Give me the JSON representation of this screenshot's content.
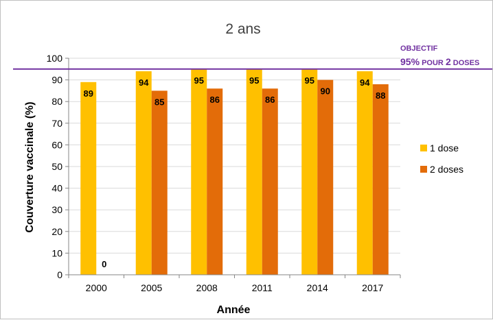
{
  "chart_data": {
    "type": "bar",
    "title": "2 ans",
    "xlabel": "Année",
    "ylabel": "Couverture vaccinale (%)",
    "ylim": [
      0,
      100
    ],
    "yticks": [
      0,
      10,
      20,
      30,
      40,
      50,
      60,
      70,
      80,
      90,
      100
    ],
    "categories": [
      "2000",
      "2005",
      "2008",
      "2011",
      "2014",
      "2017"
    ],
    "series": [
      {
        "name": "1 dose",
        "color": "#ffc000",
        "values": [
          89,
          94,
          95,
          95,
          95,
          94
        ]
      },
      {
        "name": "2 doses",
        "color": "#e36c09",
        "values": [
          0,
          85,
          86,
          86,
          90,
          88
        ]
      }
    ],
    "data_labels": true,
    "legend_position": "right",
    "grid": true,
    "annotation": {
      "line_value": 95,
      "line_color": "#7030a0",
      "text_line1": "OBJECTIF",
      "text_line2_parts": [
        "95%",
        " POUR ",
        "2",
        " DOSES"
      ]
    }
  }
}
